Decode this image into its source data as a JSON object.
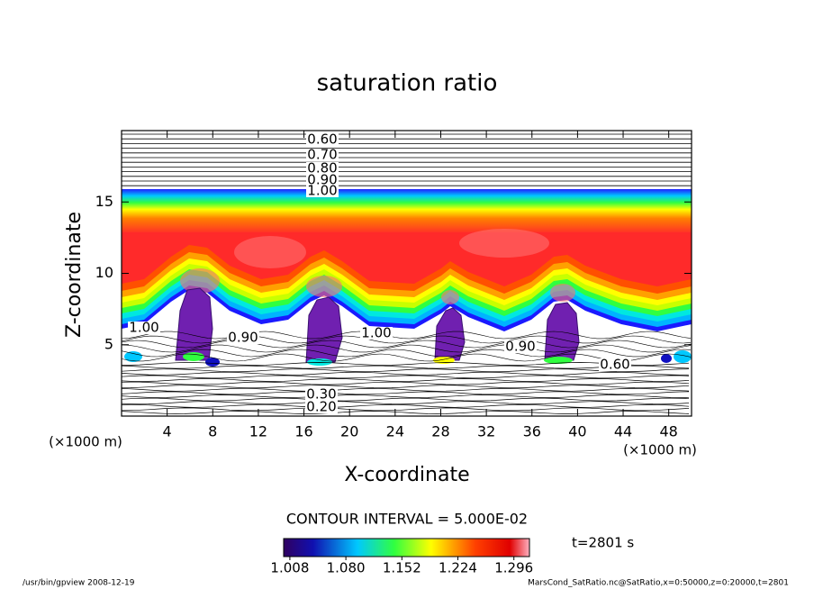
{
  "chart_data": {
    "type": "contour",
    "title": "saturation ratio",
    "xlabel": "X-coordinate",
    "ylabel": "Z-coordinate",
    "x_unit_label": "(×1000 m)",
    "y_unit_label": "(×1000 m)",
    "xlim": [
      0,
      50
    ],
    "xticks": [
      4,
      8,
      12,
      16,
      20,
      24,
      28,
      32,
      36,
      40,
      44,
      48
    ],
    "ylim": [
      0,
      20
    ],
    "yticks": [
      5,
      10,
      15
    ],
    "contour_labels": [
      {
        "value": 0.6,
        "label": "0.60"
      },
      {
        "value": 0.7,
        "label": "0.70"
      },
      {
        "value": 0.8,
        "label": "0.80"
      },
      {
        "value": 0.9,
        "label": "0.90"
      },
      {
        "value": 1.0,
        "label": "1.00"
      },
      {
        "value": 1.0,
        "label": "1.00"
      },
      {
        "value": 0.9,
        "label": "0.90"
      },
      {
        "value": 1.0,
        "label": "1.00"
      },
      {
        "value": 0.9,
        "label": "0.90"
      },
      {
        "value": 0.6,
        "label": "0.60"
      },
      {
        "value": 0.3,
        "label": "0.30"
      },
      {
        "value": 0.2,
        "label": "0.20"
      }
    ],
    "contour_interval_text": "CONTOUR INTERVAL = 5.000E-02",
    "colorbar": {
      "clim": [
        1.0,
        1.316
      ],
      "ticks": [
        1.008,
        {
          "value": 1.08,
          "label": "1.080"
        },
        1.152,
        1.224,
        1.296
      ]
    },
    "time_label": "t=2801 s",
    "footer_left": "/usr/bin/gpview   2008-12-19",
    "footer_right": "MarsCond_SatRatio.nc@SatRatio,x=0:50000,z=0:20000,t=2801"
  }
}
